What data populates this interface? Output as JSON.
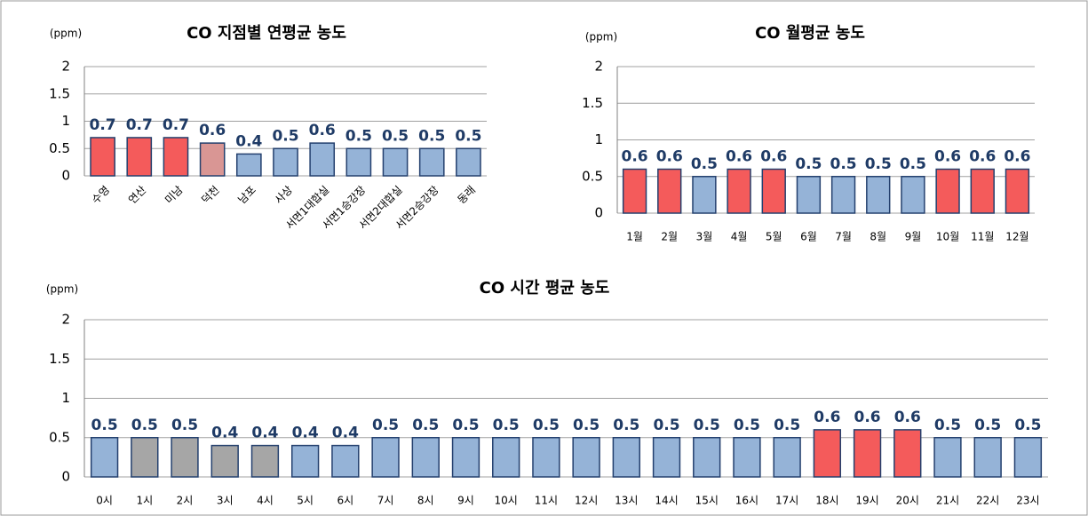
{
  "chart_data": [
    {
      "type": "bar",
      "title": "CO 지점별 연평균 농도",
      "y_label": "(ppm)",
      "categories": [
        "수영",
        "연산",
        "미남",
        "덕천",
        "남포",
        "사상",
        "서면1대합실",
        "서면1승강장",
        "서면2대합실",
        "서면2승강장",
        "동래"
      ],
      "values": [
        0.7,
        0.7,
        0.7,
        0.6,
        0.4,
        0.5,
        0.6,
        0.5,
        0.5,
        0.5,
        0.5
      ],
      "colors": [
        "#f45b5b",
        "#f45b5b",
        "#f45b5b",
        "#d99694",
        "#95b3d7",
        "#95b3d7",
        "#95b3d7",
        "#95b3d7",
        "#95b3d7",
        "#95b3d7",
        "#95b3d7"
      ],
      "ylim": [
        0,
        2
      ],
      "yticks": [
        0,
        0.5,
        1,
        1.5,
        2
      ],
      "grid": true
    },
    {
      "type": "bar",
      "title": "CO 월평균 농도",
      "y_label": "(ppm)",
      "categories": [
        "1월",
        "2월",
        "3월",
        "4월",
        "5월",
        "6월",
        "7월",
        "8월",
        "9월",
        "10월",
        "11월",
        "12월"
      ],
      "values": [
        0.6,
        0.6,
        0.5,
        0.6,
        0.6,
        0.5,
        0.5,
        0.5,
        0.5,
        0.6,
        0.6,
        0.6
      ],
      "colors": [
        "#f45b5b",
        "#f45b5b",
        "#95b3d7",
        "#f45b5b",
        "#f45b5b",
        "#95b3d7",
        "#95b3d7",
        "#95b3d7",
        "#95b3d7",
        "#f45b5b",
        "#f45b5b",
        "#f45b5b"
      ],
      "ylim": [
        0,
        2
      ],
      "yticks": [
        0,
        0.5,
        1,
        1.5,
        2
      ],
      "grid": true
    },
    {
      "type": "bar",
      "title": "CO 시간 평균 농도",
      "y_label": "(ppm)",
      "categories": [
        "0시",
        "1시",
        "2시",
        "3시",
        "4시",
        "5시",
        "6시",
        "7시",
        "8시",
        "9시",
        "10시",
        "11시",
        "12시",
        "13시",
        "14시",
        "15시",
        "16시",
        "17시",
        "18시",
        "19시",
        "20시",
        "21시",
        "22시",
        "23시"
      ],
      "values": [
        0.5,
        0.5,
        0.5,
        0.4,
        0.4,
        0.4,
        0.4,
        0.5,
        0.5,
        0.5,
        0.5,
        0.5,
        0.5,
        0.5,
        0.5,
        0.5,
        0.5,
        0.5,
        0.6,
        0.6,
        0.6,
        0.5,
        0.5,
        0.5
      ],
      "colors": [
        "#95b3d7",
        "#a6a6a6",
        "#a6a6a6",
        "#a6a6a6",
        "#a6a6a6",
        "#95b3d7",
        "#95b3d7",
        "#95b3d7",
        "#95b3d7",
        "#95b3d7",
        "#95b3d7",
        "#95b3d7",
        "#95b3d7",
        "#95b3d7",
        "#95b3d7",
        "#95b3d7",
        "#95b3d7",
        "#95b3d7",
        "#f45b5b",
        "#f45b5b",
        "#f45b5b",
        "#95b3d7",
        "#95b3d7",
        "#95b3d7"
      ],
      "ylim": [
        0,
        2
      ],
      "yticks": [
        0,
        0.5,
        1,
        1.5,
        2
      ],
      "grid": true
    }
  ]
}
